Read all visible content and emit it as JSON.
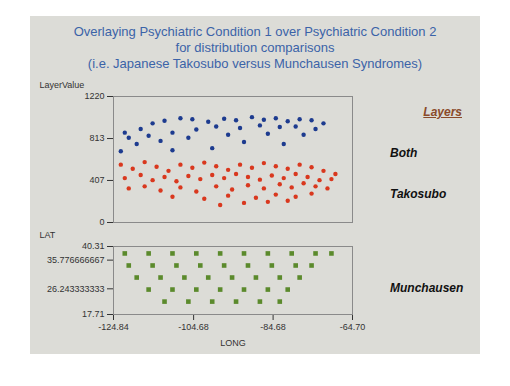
{
  "chart_data": [
    {
      "type": "scatter",
      "title": [
        "Overlaying Psychiatric Condition 1 over Psychiatric Condition 2",
        "for distribution comparisons",
        "(i.e. Japanese Takosubo versus Munchausen Syndromes)"
      ],
      "ylabel": "LayerValue",
      "xlim": [
        -124.84,
        -64.7
      ],
      "ylim": [
        0,
        1220
      ],
      "yticks": [
        0,
        407,
        813,
        1220
      ],
      "tick_labels": "y",
      "legend": "right",
      "legend_title": "Layers",
      "series": [
        {
          "name": "Both",
          "color": "#1d3b8f",
          "marker": "circle",
          "x": [
            -122,
            -118,
            -115,
            -112,
            -108,
            -105,
            -101,
            -97,
            -94,
            -90,
            -87,
            -84,
            -81,
            -78,
            -75,
            -72,
            -121,
            -116,
            -110,
            -104,
            -99,
            -93,
            -88,
            -83,
            -79,
            -74,
            -119,
            -113,
            -106,
            -96,
            -86,
            -77,
            -92,
            -100,
            -82,
            -123,
            -110
          ],
          "values": [
            870,
            905,
            960,
            985,
            1010,
            1000,
            975,
            1005,
            990,
            1020,
            995,
            1010,
            980,
            1000,
            990,
            960,
            820,
            840,
            870,
            900,
            930,
            915,
            940,
            925,
            930,
            905,
            760,
            790,
            820,
            850,
            860,
            850,
            780,
            720,
            760,
            690,
            700
          ]
        },
        {
          "name": "Takosubo",
          "color": "#d9381e",
          "marker": "circle",
          "x": [
            -123,
            -120,
            -117,
            -114,
            -111,
            -108,
            -105,
            -102,
            -99,
            -96,
            -93,
            -90,
            -87,
            -84,
            -81,
            -78,
            -75,
            -72,
            -69,
            -122,
            -118,
            -115,
            -112,
            -109,
            -106,
            -103,
            -100,
            -97,
            -94,
            -91,
            -88,
            -85,
            -82,
            -79,
            -76,
            -73,
            -70,
            -121,
            -117,
            -113,
            -108,
            -104,
            -99,
            -95,
            -91,
            -87,
            -83,
            -80,
            -77,
            -74,
            -71,
            -110,
            -102,
            -96,
            -89,
            -84,
            -79,
            -75,
            -92,
            -86,
            -81,
            -98
          ],
          "values": [
            560,
            520,
            585,
            540,
            500,
            560,
            530,
            580,
            545,
            510,
            560,
            530,
            575,
            545,
            520,
            560,
            535,
            500,
            470,
            430,
            460,
            410,
            440,
            400,
            450,
            420,
            460,
            430,
            470,
            440,
            415,
            455,
            430,
            470,
            440,
            410,
            420,
            330,
            350,
            310,
            340,
            300,
            350,
            320,
            360,
            330,
            370,
            340,
            380,
            350,
            330,
            250,
            230,
            260,
            240,
            270,
            250,
            280,
            190,
            200,
            210,
            170
          ]
        }
      ]
    },
    {
      "type": "scatter",
      "xlabel": "LONG",
      "ylabel": "LAT",
      "xlim": [
        -124.84,
        -64.7
      ],
      "xticks": [
        -124.84,
        -104.68,
        -84.68,
        {
          "value": -64.7,
          "label": "-64.70"
        }
      ],
      "ylim": [
        17.71,
        40.31
      ],
      "yticks": [
        17.71,
        26.243333333,
        35.776666667,
        40.31
      ],
      "legend": "right",
      "series": [
        {
          "name": "Munchausen",
          "color": "#5b8a2c",
          "marker": "square",
          "x": [
            -122,
            -116,
            -110,
            -104,
            -98,
            -92,
            -86,
            -80,
            -74,
            -70,
            -121,
            -115,
            -109,
            -103,
            -97,
            -91,
            -85,
            -79,
            -75,
            -119,
            -113,
            -107,
            -101,
            -95,
            -89,
            -83,
            -78,
            -116,
            -110,
            -104,
            -98,
            -92,
            -86,
            -81,
            -112,
            -106,
            -100,
            -94,
            -88,
            -83
          ],
          "values": [
            38,
            38,
            38,
            38,
            38,
            38,
            38,
            38,
            38,
            38,
            34,
            34,
            34,
            34,
            34,
            34,
            34,
            34,
            34,
            30,
            30,
            30,
            30,
            30,
            30,
            30,
            30,
            26,
            26,
            26,
            26,
            26,
            26,
            26,
            22,
            22,
            22,
            22,
            22,
            22
          ]
        }
      ]
    }
  ]
}
